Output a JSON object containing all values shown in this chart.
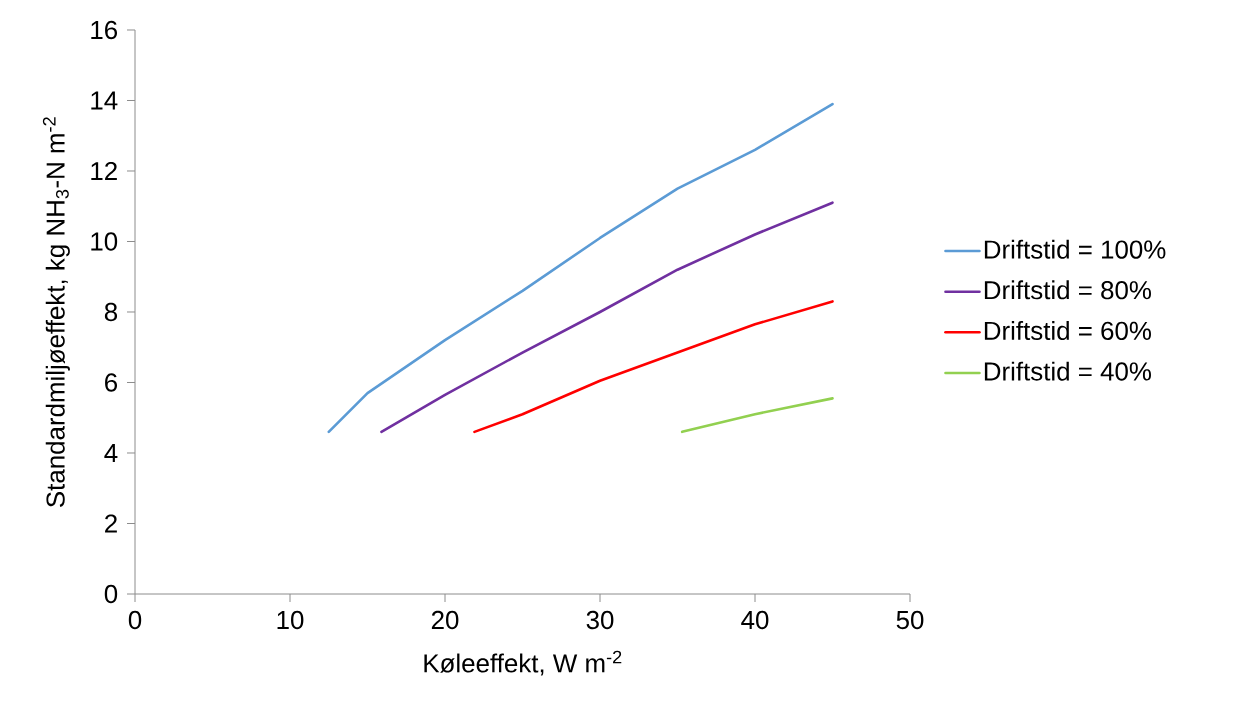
{
  "chart_data": {
    "type": "line",
    "xlabel": "Køleeffekt, W m$^{-2}$",
    "ylabel": "Standardmiljøeffekt, kg NH$_{3}$-N m$^{-2}$",
    "xlim": [
      0,
      50
    ],
    "ylim": [
      0,
      16
    ],
    "xticks": [
      0,
      10,
      20,
      30,
      40,
      50
    ],
    "yticks": [
      0,
      2,
      4,
      6,
      8,
      10,
      12,
      14,
      16
    ],
    "legend": "right",
    "grid": false,
    "marker": "none",
    "line_style": "solid",
    "series": [
      {
        "name": "Driftstid = 100%",
        "color": "#5b9bd5",
        "x": [
          12.5,
          15,
          20,
          25,
          30,
          35,
          40,
          45
        ],
        "values": [
          4.6,
          5.7,
          7.2,
          8.6,
          10.1,
          11.5,
          12.6,
          13.9
        ]
      },
      {
        "name": "Driftstid = 80%",
        "color": "#7030a0",
        "x": [
          15.9,
          20,
          25,
          30,
          35,
          40,
          45
        ],
        "values": [
          4.6,
          5.65,
          6.85,
          8.0,
          9.2,
          10.2,
          11.1
        ]
      },
      {
        "name": "Driftstid = 60%",
        "color": "#ff0000",
        "x": [
          21.9,
          25,
          30,
          35,
          40,
          45
        ],
        "values": [
          4.6,
          5.1,
          6.05,
          6.85,
          7.65,
          8.3
        ]
      },
      {
        "name": "Driftstid = 40%",
        "color": "#92d050",
        "x": [
          35.3,
          40,
          45
        ],
        "values": [
          4.6,
          5.1,
          5.55
        ]
      }
    ]
  }
}
